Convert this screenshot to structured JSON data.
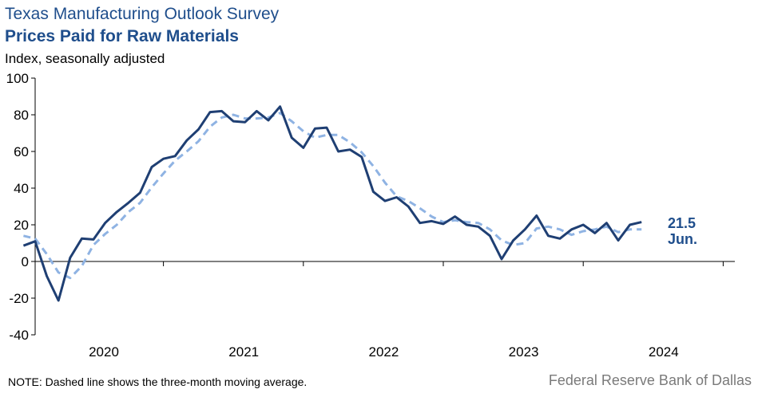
{
  "header": {
    "title": "Texas Manufacturing Outlook Survey",
    "subtitle": "Prices Paid for Raw Materials",
    "units": "Index, seasonally adjusted"
  },
  "footer": {
    "note": "NOTE: Dashed line shows the three-month  moving average.",
    "source": "Federal Reserve Bank of Dallas"
  },
  "annotation": {
    "value": "21.5",
    "month": "Jun."
  },
  "colors": {
    "index_line": "#1f3f73",
    "moving_average": "#8fb3e3",
    "title": "#1f4e8c"
  },
  "chart_data": {
    "type": "line",
    "title": "Prices Paid for Raw Materials",
    "ylabel": "Index, seasonally adjusted",
    "ylim": [
      -40,
      100
    ],
    "yticks": [
      -40,
      -20,
      0,
      20,
      40,
      60,
      80,
      100
    ],
    "year_labels": [
      "2020",
      "2021",
      "2022",
      "2023",
      "2024"
    ],
    "x_start": "2019-07",
    "x_end": "2024-06",
    "grid": false,
    "series": [
      {
        "style": "solid",
        "values": [
          8.6,
          11,
          -8,
          -21.3,
          2,
          12.5,
          12,
          21,
          27,
          32,
          37.5,
          51.5,
          56,
          57.5,
          66,
          72,
          81.5,
          82,
          76.5,
          76,
          82,
          77,
          84.5,
          67.5,
          62,
          72.5,
          73,
          60,
          61,
          57,
          38,
          33,
          35,
          30,
          21,
          22,
          20.5,
          24.5,
          20,
          19,
          14,
          1.3,
          11.5,
          17.5,
          25,
          14,
          12.5,
          17.5,
          20,
          15.5,
          21,
          11.5,
          20,
          21.5
        ]
      },
      {
        "style": "dashed",
        "values": [
          14,
          12.5,
          4,
          -6,
          -9,
          -2.5,
          9,
          15,
          20,
          27,
          32,
          40.5,
          48,
          55,
          60,
          65.5,
          73.5,
          78.5,
          80,
          78,
          78,
          78.5,
          81,
          76.5,
          71,
          67.5,
          69,
          69,
          65,
          59.5,
          52,
          43,
          35.5,
          33,
          29,
          24.5,
          21.5,
          22.5,
          21.5,
          21,
          17.5,
          11.5,
          9,
          10,
          18,
          19,
          17.5,
          14.5,
          16.5,
          17.5,
          19,
          16,
          17.5,
          17.5
        ]
      }
    ]
  }
}
